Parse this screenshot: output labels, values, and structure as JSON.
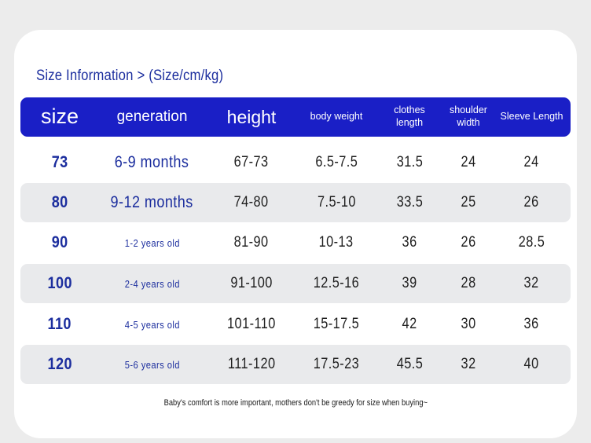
{
  "title": "Size Information > (Size/cm/kg)",
  "colors": {
    "header_bg": "#1a1fc6",
    "accent_text": "#1c2e9e",
    "row_shade": "#e9eaec"
  },
  "columns": [
    "size",
    "generation",
    "height",
    "body weight",
    "clothes length",
    "shoulder width",
    "Sleeve Length"
  ],
  "rows": [
    [
      "73",
      "6-9 months",
      "67-73",
      "6.5-7.5",
      "31.5",
      "24",
      "24"
    ],
    [
      "80",
      "9-12 months",
      "74-80",
      "7.5-10",
      "33.5",
      "25",
      "26"
    ],
    [
      "90",
      "1-2 years old",
      "81-90",
      "10-13",
      "36",
      "26",
      "28.5"
    ],
    [
      "100",
      "2-4 years old",
      "91-100",
      "12.5-16",
      "39",
      "28",
      "32"
    ],
    [
      "110",
      "4-5 years old",
      "101-110",
      "15-17.5",
      "42",
      "30",
      "36"
    ],
    [
      "120",
      "5-6 years old",
      "111-120",
      "17.5-23",
      "45.5",
      "32",
      "40"
    ]
  ],
  "footer": "Baby's comfort is more important, mothers don't be greedy for size when buying~"
}
